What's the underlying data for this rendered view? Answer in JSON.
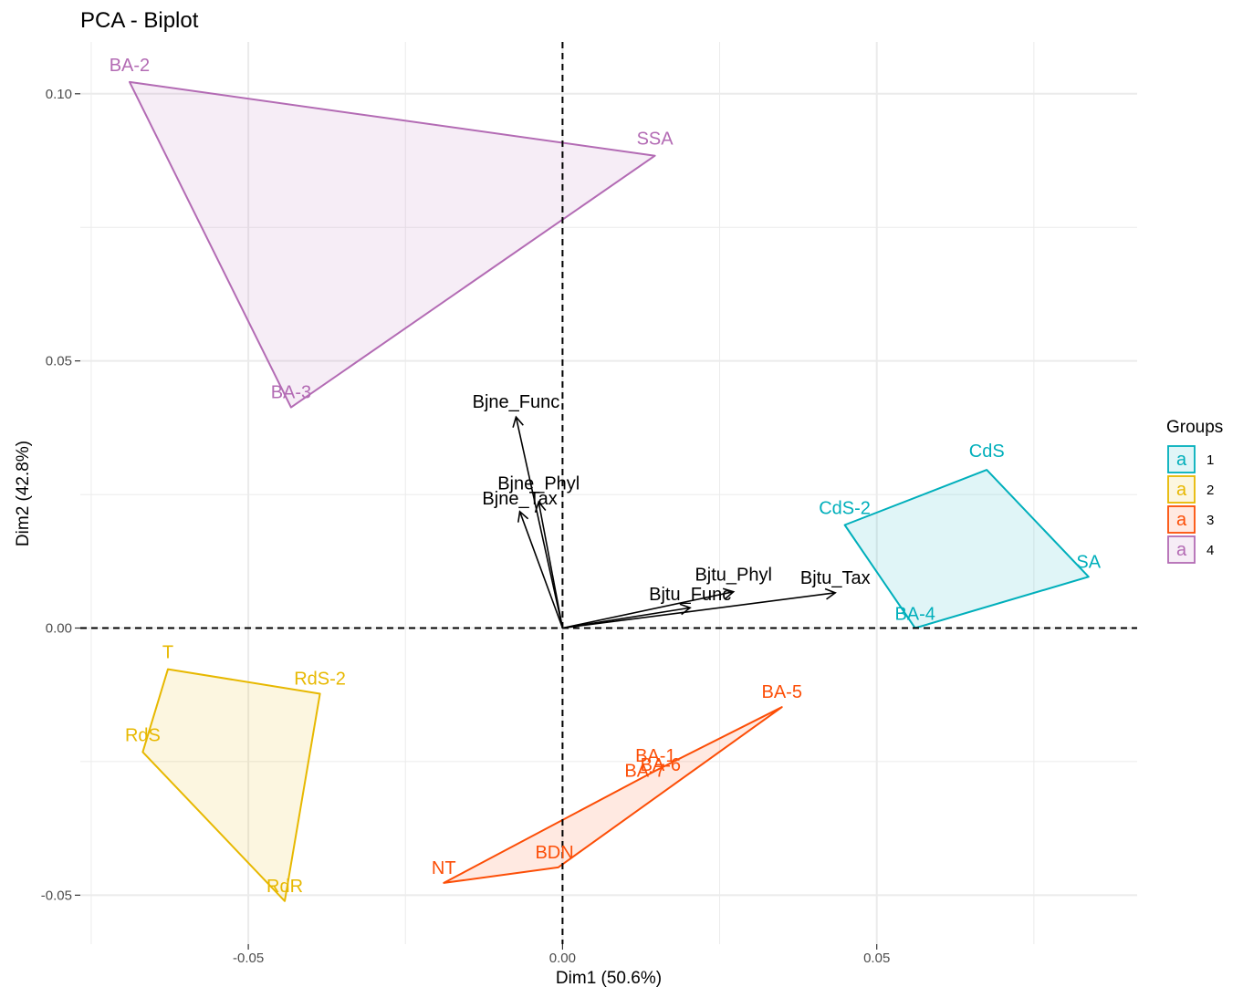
{
  "chart_data": {
    "type": "scatter",
    "title": "PCA - Biplot",
    "xlabel": "Dim1 (50.6%)",
    "ylabel": "Dim2 (42.8%)",
    "xlim": [
      -0.075,
      0.091
    ],
    "ylim": [
      -0.059,
      0.11
    ],
    "x_ticks": [
      -0.05,
      0.0,
      0.05
    ],
    "x_tick_labels": [
      "-0.05",
      "0.00",
      "0.05"
    ],
    "y_ticks": [
      -0.05,
      0.0,
      0.05,
      0.1
    ],
    "y_tick_labels": [
      "-0.05",
      "0.00",
      "0.05",
      "0.10"
    ],
    "grid": true,
    "legend": {
      "title": "Groups",
      "placement": "right",
      "key_glyph": "a",
      "entries": [
        {
          "label": "1",
          "color": "#00AFBB"
        },
        {
          "label": "2",
          "color": "#E7B800"
        },
        {
          "label": "3",
          "color": "#FC4E07"
        },
        {
          "label": "4",
          "color": "#B36BB4"
        }
      ]
    },
    "groups": [
      {
        "name": "1",
        "color": "#00AFBB",
        "points": [
          {
            "label": "CdS",
            "x": 0.0675,
            "y": 0.0296
          },
          {
            "label": "CdS-2",
            "x": 0.0449,
            "y": 0.0193
          },
          {
            "label": "SA",
            "x": 0.0837,
            "y": 0.0096
          },
          {
            "label": "BA-4",
            "x": 0.0561,
            "y": 0.0
          }
        ],
        "hull": [
          "CdS",
          "CdS-2",
          "BA-4",
          "SA"
        ]
      },
      {
        "name": "2",
        "color": "#E7B800",
        "points": [
          {
            "label": "T",
            "x": -0.0628,
            "y": -0.0077
          },
          {
            "label": "RdS-2",
            "x": -0.0386,
            "y": -0.0123
          },
          {
            "label": "RdS",
            "x": -0.0668,
            "y": -0.0232
          },
          {
            "label": "RdR",
            "x": -0.0442,
            "y": -0.0511
          }
        ],
        "hull": [
          "T",
          "RdS-2",
          "RdR",
          "RdS"
        ]
      },
      {
        "name": "3",
        "color": "#FC4E07",
        "points": [
          {
            "label": "BA-5",
            "x": 0.0349,
            "y": -0.0148
          },
          {
            "label": "BA-1",
            "x": 0.0148,
            "y": -0.0267
          },
          {
            "label": "BA-6",
            "x": 0.0156,
            "y": -0.0284
          },
          {
            "label": "BA-7",
            "x": 0.0131,
            "y": -0.0295
          },
          {
            "label": "BDN",
            "x": -0.0007,
            "y": -0.0448
          },
          {
            "label": "NT",
            "x": -0.0189,
            "y": -0.0477
          }
        ],
        "hull": [
          "BA-5",
          "BDN",
          "NT",
          "BA-1"
        ]
      },
      {
        "name": "4",
        "color": "#B36BB4",
        "points": [
          {
            "label": "BA-2",
            "x": -0.0689,
            "y": 0.1022
          },
          {
            "label": "SSA",
            "x": 0.0147,
            "y": 0.0884
          },
          {
            "label": "BA-3",
            "x": -0.0432,
            "y": 0.0413
          }
        ],
        "hull": [
          "BA-2",
          "SSA",
          "BA-3"
        ]
      }
    ],
    "variables": [
      {
        "name": "Bjne_Func",
        "x": -0.0074,
        "y": 0.0395
      },
      {
        "name": "Bjne_Phyl",
        "x": -0.0038,
        "y": 0.0236
      },
      {
        "name": "Bjne_Tax",
        "x": -0.0068,
        "y": 0.0218
      },
      {
        "name": "Bjtu_Phyl",
        "x": 0.0272,
        "y": 0.0068
      },
      {
        "name": "Bjtu_Func",
        "x": 0.0203,
        "y": 0.0038
      },
      {
        "name": "Bjtu_Tax",
        "x": 0.0434,
        "y": 0.0066
      }
    ]
  }
}
